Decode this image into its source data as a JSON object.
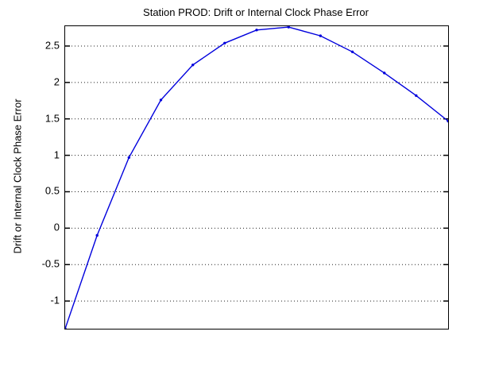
{
  "figure": {
    "title": "Station PROD: Drift or Internal Clock Phase Error",
    "background_color": "#ffffff"
  },
  "chart_data": {
    "type": "line",
    "title": "Station PROD: Drift or Internal Clock Phase Error",
    "xlabel": "",
    "ylabel": "Drift or Internal Clock Phase Error",
    "x": [
      0,
      1,
      2,
      3,
      4,
      5,
      6,
      7,
      8,
      9,
      10,
      11,
      12
    ],
    "values": [
      -1.38,
      -0.1,
      0.97,
      1.76,
      2.24,
      2.54,
      2.72,
      2.76,
      2.64,
      2.42,
      2.13,
      1.82,
      1.47
    ],
    "series_name": "Drift or Internal Clock Phase Error",
    "y_ticks": [
      2.5,
      2,
      1.5,
      1,
      0.5,
      0,
      -0.5,
      -1
    ],
    "y_tick_labels": [
      "2.5",
      "2",
      "1.5",
      "1",
      "0.5",
      "0",
      "-0.5",
      "-1"
    ],
    "x_tick_labels": [],
    "ylim": [
      -1.38,
      2.772
    ],
    "grid": "horizontal dotted",
    "legend_position": "none",
    "marker": "point",
    "line_color": "#0000dd",
    "grid_color": "#222222",
    "axis_color": "#000000"
  }
}
